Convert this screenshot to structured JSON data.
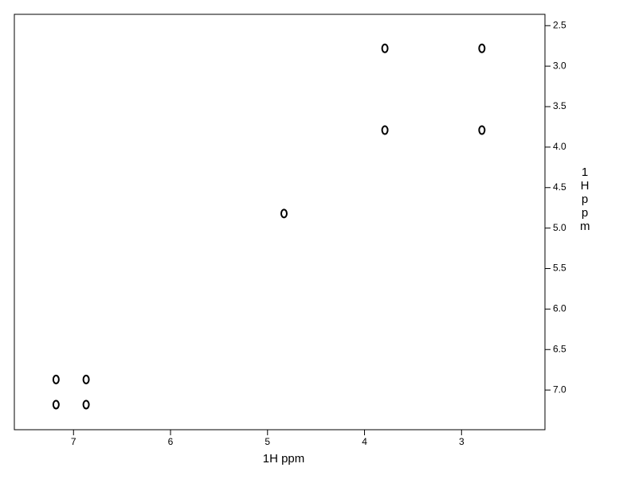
{
  "chart_data": {
    "type": "scatter",
    "x": [
      3.79,
      2.79,
      3.79,
      2.79,
      4.83,
      7.18,
      6.87,
      7.18,
      6.87
    ],
    "values": [
      2.78,
      2.78,
      3.79,
      3.79,
      4.82,
      6.87,
      6.87,
      7.18,
      7.18
    ],
    "color": "#000000",
    "x_label": "1H ppm",
    "y_label": "1H ppm",
    "xlim": [
      7.61,
      2.14
    ],
    "ylim": [
      7.49,
      2.36
    ],
    "xticks": [
      7,
      6,
      5,
      4,
      3
    ],
    "yticks": [
      2.5,
      {
        "value": 3,
        "label": "3.0"
      },
      3.5,
      {
        "value": 4,
        "label": "4.0"
      },
      4.5,
      {
        "value": 5,
        "label": "5.0"
      },
      5.5,
      {
        "value": 6,
        "label": "6.0"
      },
      6.5,
      {
        "value": 7,
        "label": "7.0"
      }
    ]
  }
}
